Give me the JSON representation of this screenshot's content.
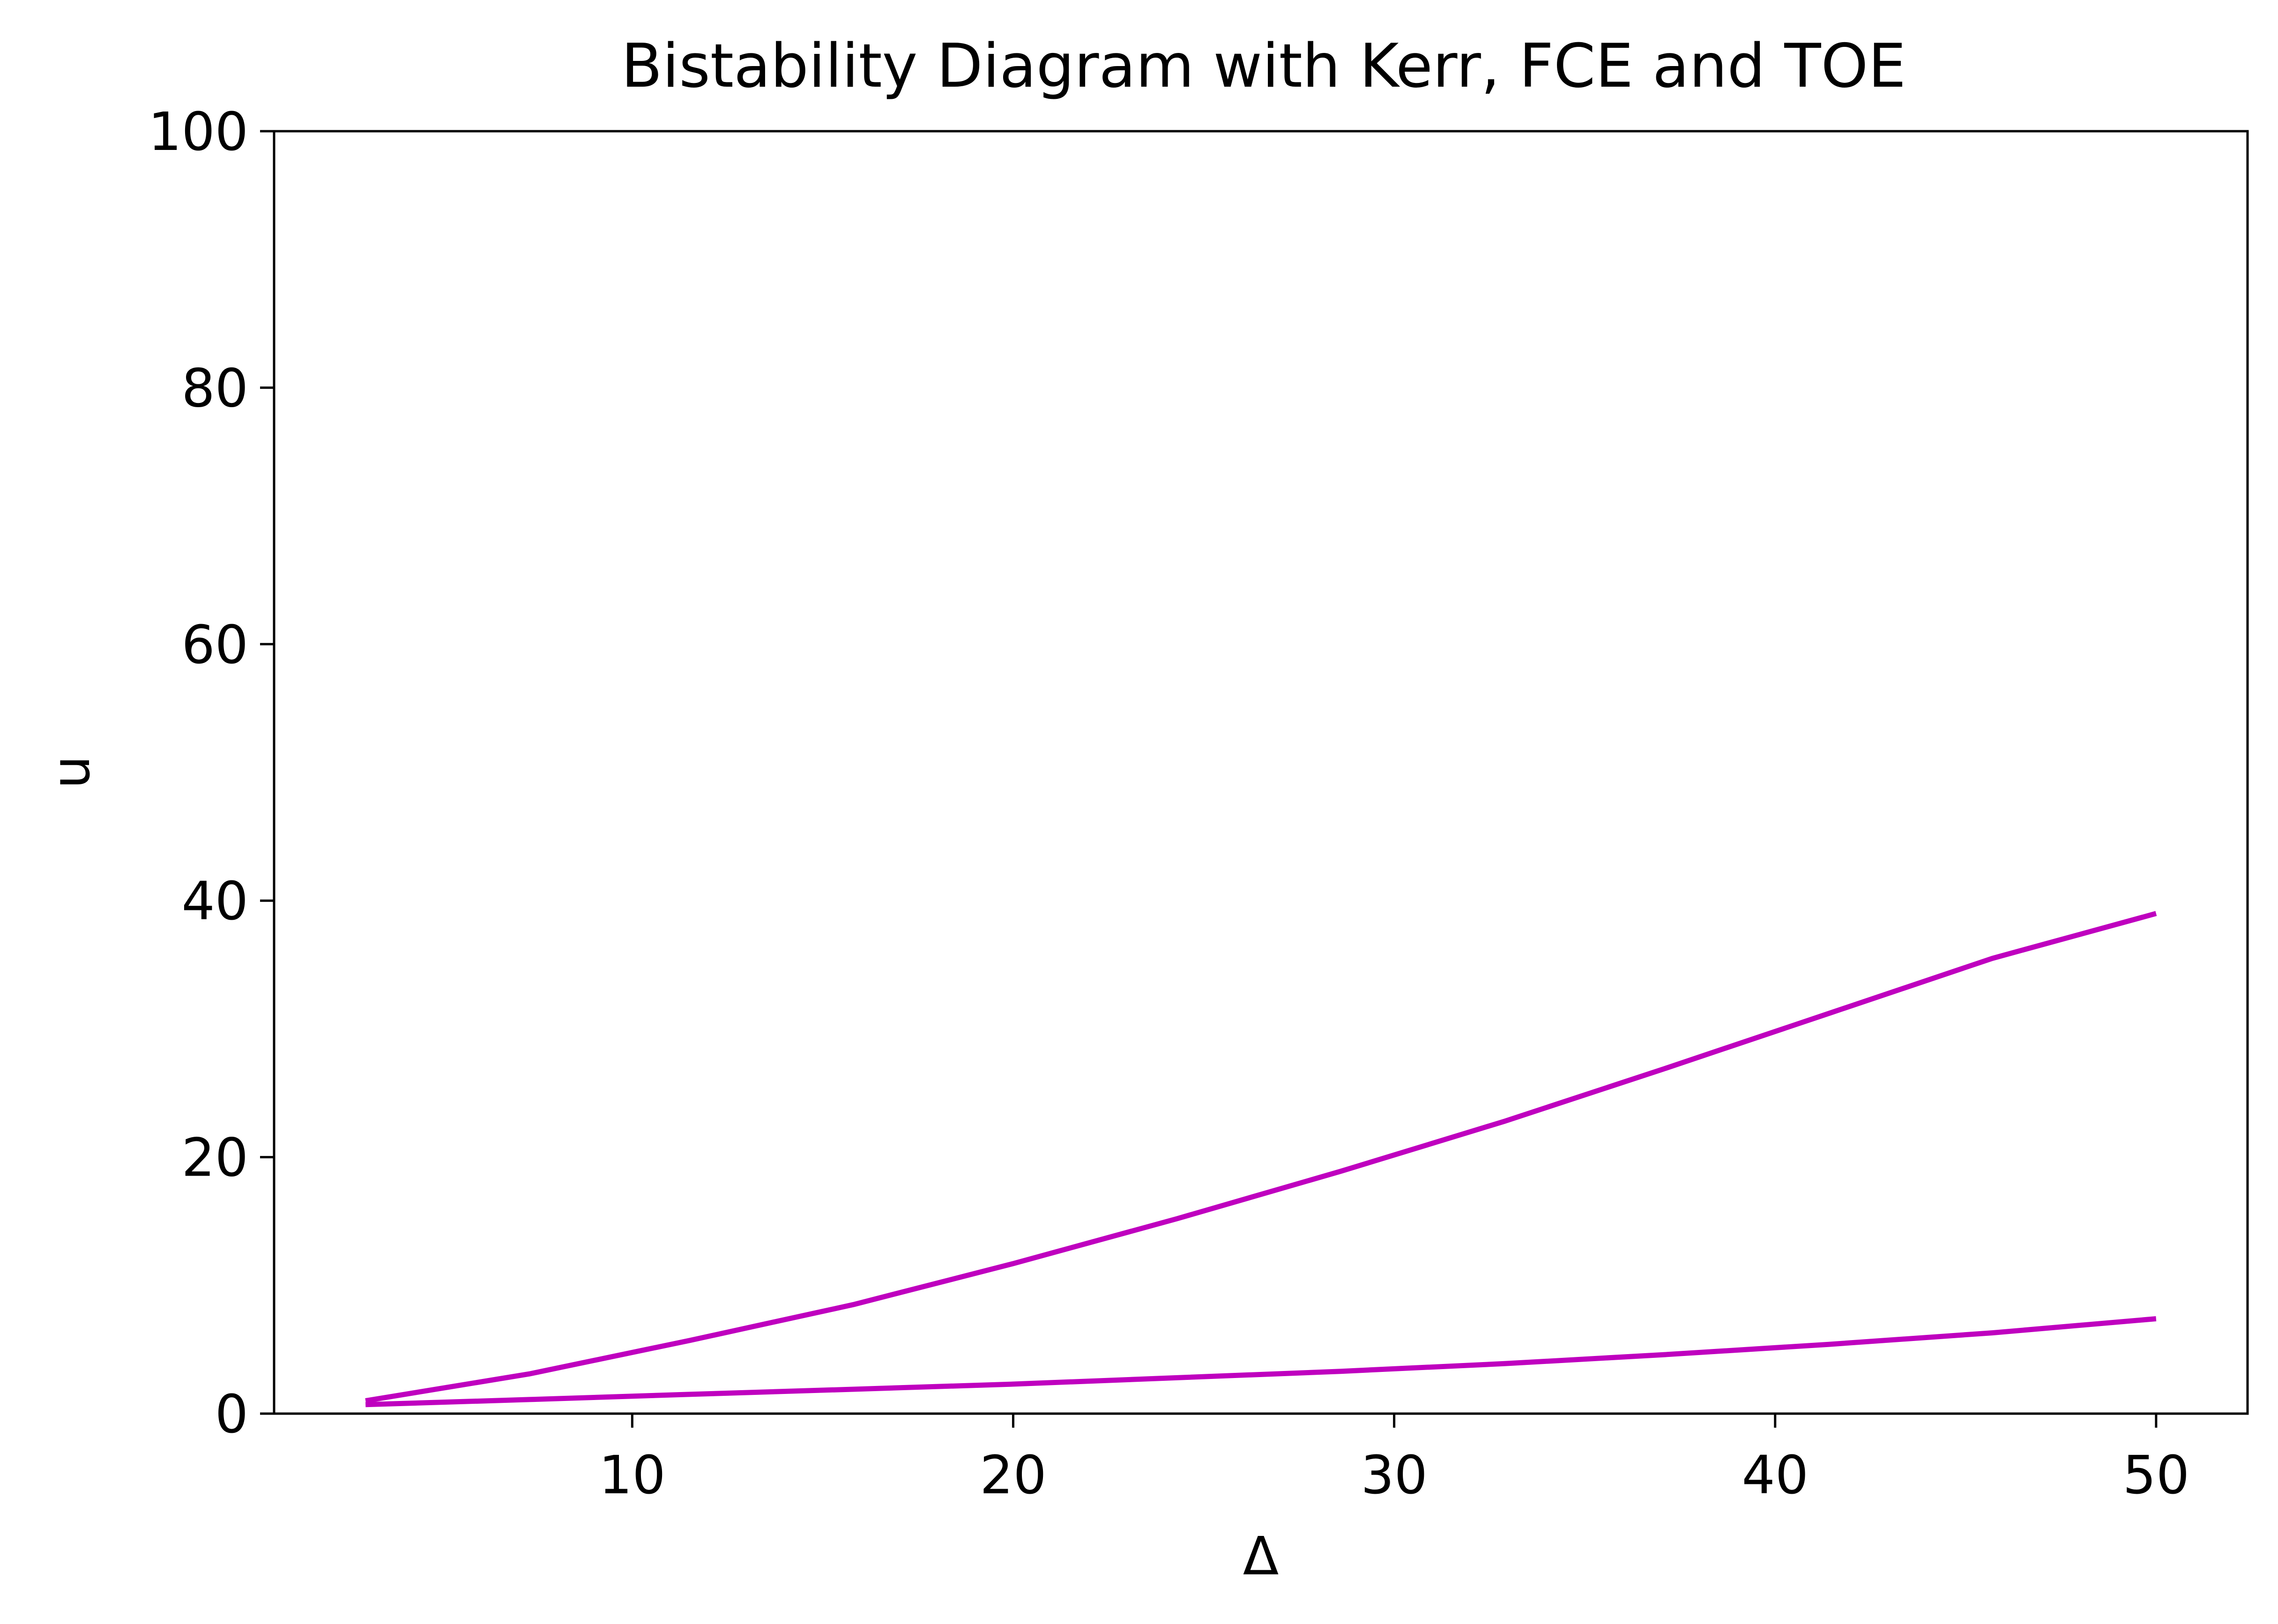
{
  "chart_data": {
    "type": "line",
    "title": "Bistability Diagram with Kerr, FCE and TOE",
    "xlabel": "Δ",
    "ylabel": "u",
    "xlim": [
      0.6,
      52.4
    ],
    "ylim": [
      0,
      100
    ],
    "xticks": [
      10,
      20,
      30,
      40,
      50
    ],
    "yticks": [
      0,
      20,
      40,
      60,
      80,
      100
    ],
    "grid": false,
    "legend": "none",
    "color": "#bf00bf",
    "series": [
      {
        "x": [
          3,
          7.3,
          11.5,
          15.8,
          20,
          24.3,
          28.6,
          32.9,
          37.1,
          41.4,
          45.7,
          50
        ],
        "values": [
          1.0,
          3.1,
          5.7,
          8.5,
          11.7,
          15.2,
          18.9,
          22.8,
          26.9,
          31.2,
          35.5,
          39.0
        ]
      },
      {
        "x": [
          3,
          7.3,
          11.5,
          15.8,
          20,
          24.3,
          28.6,
          32.9,
          37.1,
          41.4,
          45.7,
          50
        ],
        "values": [
          0.7,
          1.1,
          1.5,
          1.9,
          2.3,
          2.8,
          3.3,
          3.9,
          4.6,
          5.4,
          6.3,
          7.4
        ]
      }
    ]
  }
}
